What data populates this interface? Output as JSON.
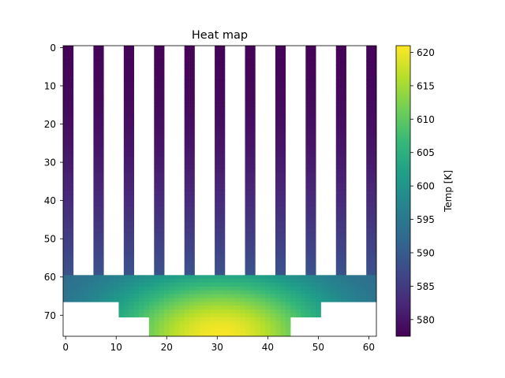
{
  "chart_data": {
    "type": "heatmap",
    "title": "Heat map",
    "xlabel": "",
    "ylabel": "",
    "grid": false,
    "x_range": [
      -0.5,
      61.5
    ],
    "y_range": [
      75.5,
      -0.5
    ],
    "x_ticks": [
      0,
      10,
      20,
      30,
      40,
      50,
      60
    ],
    "y_ticks": [
      0,
      10,
      20,
      30,
      40,
      50,
      60,
      70
    ],
    "colormap": "viridis",
    "colorbar": {
      "label": "Temp [K]",
      "range": [
        577.5,
        621
      ],
      "ticks": [
        580,
        585,
        590,
        595,
        600,
        605,
        610,
        615,
        620
      ]
    },
    "geometry": {
      "fins": {
        "rows": [
          0,
          59
        ],
        "columns": [
          [
            0,
            1
          ],
          [
            6,
            7
          ],
          [
            12,
            13
          ],
          [
            18,
            19
          ],
          [
            24,
            25
          ],
          [
            30,
            31
          ],
          [
            36,
            37
          ],
          [
            42,
            43
          ],
          [
            48,
            49
          ],
          [
            54,
            55
          ],
          [
            60,
            61
          ]
        ],
        "temp_top": 578.0,
        "temp_bottom": 588.5
      },
      "base_layers": [
        {
          "rows": [
            60,
            66
          ],
          "columns": [
            0,
            61
          ]
        },
        {
          "rows": [
            67,
            70
          ],
          "columns": [
            11,
            50
          ]
        },
        {
          "rows": [
            71,
            75
          ],
          "columns": [
            17,
            44
          ]
        }
      ],
      "base_temp": {
        "top_edge": 591.0,
        "hotspot": 620.5,
        "hotspot_center": [
          30.5,
          75
        ]
      }
    }
  },
  "colors": {
    "background": "#ffffff",
    "axis": "#000000",
    "viridis_stops": [
      "#440154",
      "#482878",
      "#3e4989",
      "#31688e",
      "#26828e",
      "#1f9e89",
      "#35b779",
      "#6ece58",
      "#b5de2b",
      "#fde725"
    ]
  }
}
